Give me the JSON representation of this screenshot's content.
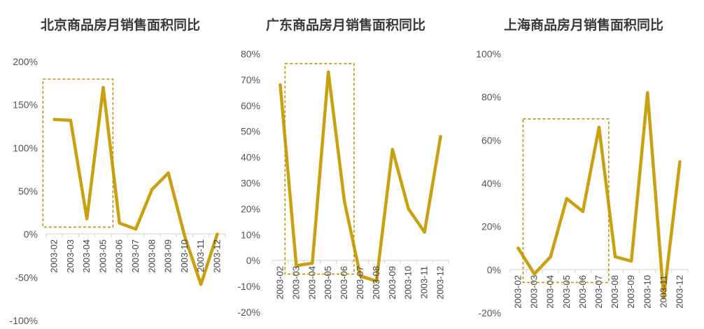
{
  "style": {
    "line_color": "#c9a00e",
    "box_color": "#b8960a",
    "axis_color": "#d0d0d0"
  },
  "chart_data": [
    {
      "type": "line",
      "title": "北京商品房月销售面积同比",
      "x": [
        "2003-02",
        "2003-03",
        "2003-04",
        "2003-05",
        "2003-06",
        "2003-07",
        "2003-08",
        "2003-09",
        "2003-10",
        "2003-11",
        "2003-12"
      ],
      "values": [
        1.33,
        1.32,
        0.18,
        1.7,
        0.13,
        0.06,
        0.52,
        0.71,
        -0.02,
        -0.58,
        0.0
      ],
      "ylim": [
        -1.0,
        2.0
      ],
      "yticks": [
        -1.0,
        -0.5,
        0.0,
        0.5,
        1.0,
        1.5,
        2.0
      ],
      "ytick_labels": [
        "-100%",
        "-50%",
        "0%",
        "50%",
        "100%",
        "150%",
        "200%"
      ],
      "highlight_box": {
        "x_from": "2003-02",
        "x_to": "2003-05"
      }
    },
    {
      "type": "line",
      "title": "广东商品房月销售面积同比",
      "x": [
        "2003-02",
        "2003-03",
        "2003-04",
        "2003-05",
        "2003-06",
        "2003-07",
        "2003-08",
        "2003-09",
        "2003-10",
        "2003-11",
        "2003-12"
      ],
      "values": [
        0.68,
        -0.02,
        -0.01,
        0.73,
        0.23,
        -0.06,
        -0.08,
        0.43,
        0.2,
        0.11,
        0.48
      ],
      "ylim": [
        -0.2,
        0.8
      ],
      "yticks": [
        -0.2,
        -0.1,
        0.0,
        0.1,
        0.2,
        0.3,
        0.4,
        0.5,
        0.6,
        0.7,
        0.8
      ],
      "ytick_labels": [
        "-20%",
        "-10%",
        "0%",
        "10%",
        "20%",
        "30%",
        "40%",
        "50%",
        "60%",
        "70%",
        "80%"
      ],
      "highlight_box": {
        "x_from": "2003-03",
        "x_to": "2003-06"
      }
    },
    {
      "type": "line",
      "title": "上海商品房月销售面积同比",
      "x": [
        "2003-02",
        "2003-03",
        "2003-04",
        "2003-05",
        "2003-06",
        "2003-07",
        "2003-08",
        "2003-09",
        "2003-10",
        "2003-11",
        "2003-12"
      ],
      "values": [
        0.1,
        -0.02,
        0.06,
        0.33,
        0.27,
        0.66,
        0.06,
        0.04,
        0.82,
        -0.13,
        0.5
      ],
      "ylim": [
        -0.2,
        1.0
      ],
      "yticks": [
        -0.2,
        0.0,
        0.2,
        0.4,
        0.6,
        0.8,
        1.0
      ],
      "ytick_labels": [
        "-20%",
        "0%",
        "20%",
        "40%",
        "60%",
        "80%",
        "100%"
      ],
      "highlight_box": {
        "x_from": "2003-03",
        "x_to": "2003-07"
      }
    }
  ]
}
